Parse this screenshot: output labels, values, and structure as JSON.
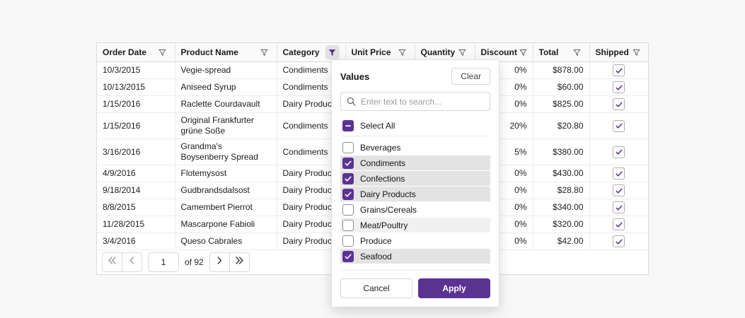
{
  "colors": {
    "accent": "#5c3292",
    "selected_row_bg": "#e3e3e4",
    "hover_row_bg": "#f1f1f1",
    "icon_gray": "#6e6e6e",
    "disabled_chevron": "#9e9e9e",
    "enabled_chevron": "#3d3d3d"
  },
  "grid": {
    "columns": [
      {
        "label": "Order Date",
        "filter_active": false
      },
      {
        "label": "Product Name",
        "filter_active": false
      },
      {
        "label": "Category",
        "filter_active": true
      },
      {
        "label": "Unit Price",
        "filter_active": false
      },
      {
        "label": "Quantity",
        "filter_active": false
      },
      {
        "label": "Discount",
        "filter_active": false
      },
      {
        "label": "Total",
        "filter_active": false
      },
      {
        "label": "Shipped",
        "filter_active": false
      }
    ],
    "rows": [
      {
        "order_date": "10/3/2015",
        "product_name": "Vegie-spread",
        "category": "Condiments",
        "unit_price": "",
        "quantity": "",
        "discount": "0%",
        "total": "$878.00",
        "shipped": true
      },
      {
        "order_date": "10/13/2015",
        "product_name": "Aniseed Syrup",
        "category": "Condiments",
        "unit_price": "",
        "quantity": "",
        "discount": "0%",
        "total": "$60.00",
        "shipped": true
      },
      {
        "order_date": "1/15/2016",
        "product_name": "Raclette Courdavault",
        "category": "Dairy Products",
        "unit_price": "",
        "quantity": "",
        "discount": "0%",
        "total": "$825.00",
        "shipped": true
      },
      {
        "order_date": "1/15/2016",
        "product_name": "Original Frankfurter grüne Soße",
        "category": "Condiments",
        "unit_price": "",
        "quantity": "",
        "discount": "20%",
        "total": "$20.80",
        "shipped": true
      },
      {
        "order_date": "3/16/2016",
        "product_name": "Grandma's Boysenberry Spread",
        "category": "Condiments",
        "unit_price": "",
        "quantity": "",
        "discount": "5%",
        "total": "$380.00",
        "shipped": true
      },
      {
        "order_date": "4/9/2016",
        "product_name": "Flotemysost",
        "category": "Dairy Products",
        "unit_price": "",
        "quantity": "",
        "discount": "0%",
        "total": "$430.00",
        "shipped": true
      },
      {
        "order_date": "9/18/2014",
        "product_name": "Gudbrandsdalsost",
        "category": "Dairy Products",
        "unit_price": "",
        "quantity": "",
        "discount": "0%",
        "total": "$28.80",
        "shipped": true
      },
      {
        "order_date": "8/8/2015",
        "product_name": "Camembert Pierrot",
        "category": "Dairy Products",
        "unit_price": "",
        "quantity": "",
        "discount": "0%",
        "total": "$340.00",
        "shipped": true
      },
      {
        "order_date": "11/28/2015",
        "product_name": "Mascarpone Fabioli",
        "category": "Dairy Products",
        "unit_price": "",
        "quantity": "",
        "discount": "0%",
        "total": "$320.00",
        "shipped": true
      },
      {
        "order_date": "3/4/2016",
        "product_name": "Queso Cabrales",
        "category": "Dairy Products",
        "unit_price": "",
        "quantity": "",
        "discount": "0%",
        "total": "$42.00",
        "shipped": true
      }
    ],
    "pager": {
      "page": "1",
      "of_label": "of 92",
      "first_icon": "double-chevron-left-icon",
      "prev_icon": "chevron-left-icon",
      "next_icon": "chevron-right-icon",
      "last_icon": "double-chevron-right-icon",
      "prev_disabled": true,
      "next_disabled": false
    }
  },
  "filter_popup": {
    "title": "Values",
    "clear_label": "Clear",
    "search_placeholder": "Enter text to search...",
    "select_all": {
      "label": "Select All",
      "state": "indeterminate"
    },
    "items": [
      {
        "label": "Beverages",
        "checked": false,
        "hovered": false
      },
      {
        "label": "Condiments",
        "checked": true,
        "hovered": false
      },
      {
        "label": "Confections",
        "checked": true,
        "hovered": false
      },
      {
        "label": "Dairy Products",
        "checked": true,
        "hovered": false
      },
      {
        "label": "Grains/Cereals",
        "checked": false,
        "hovered": false
      },
      {
        "label": "Meat/Poultry",
        "checked": false,
        "hovered": true
      },
      {
        "label": "Produce",
        "checked": false,
        "hovered": false
      },
      {
        "label": "Seafood",
        "checked": true,
        "hovered": false
      }
    ],
    "cancel_label": "Cancel",
    "apply_label": "Apply"
  }
}
